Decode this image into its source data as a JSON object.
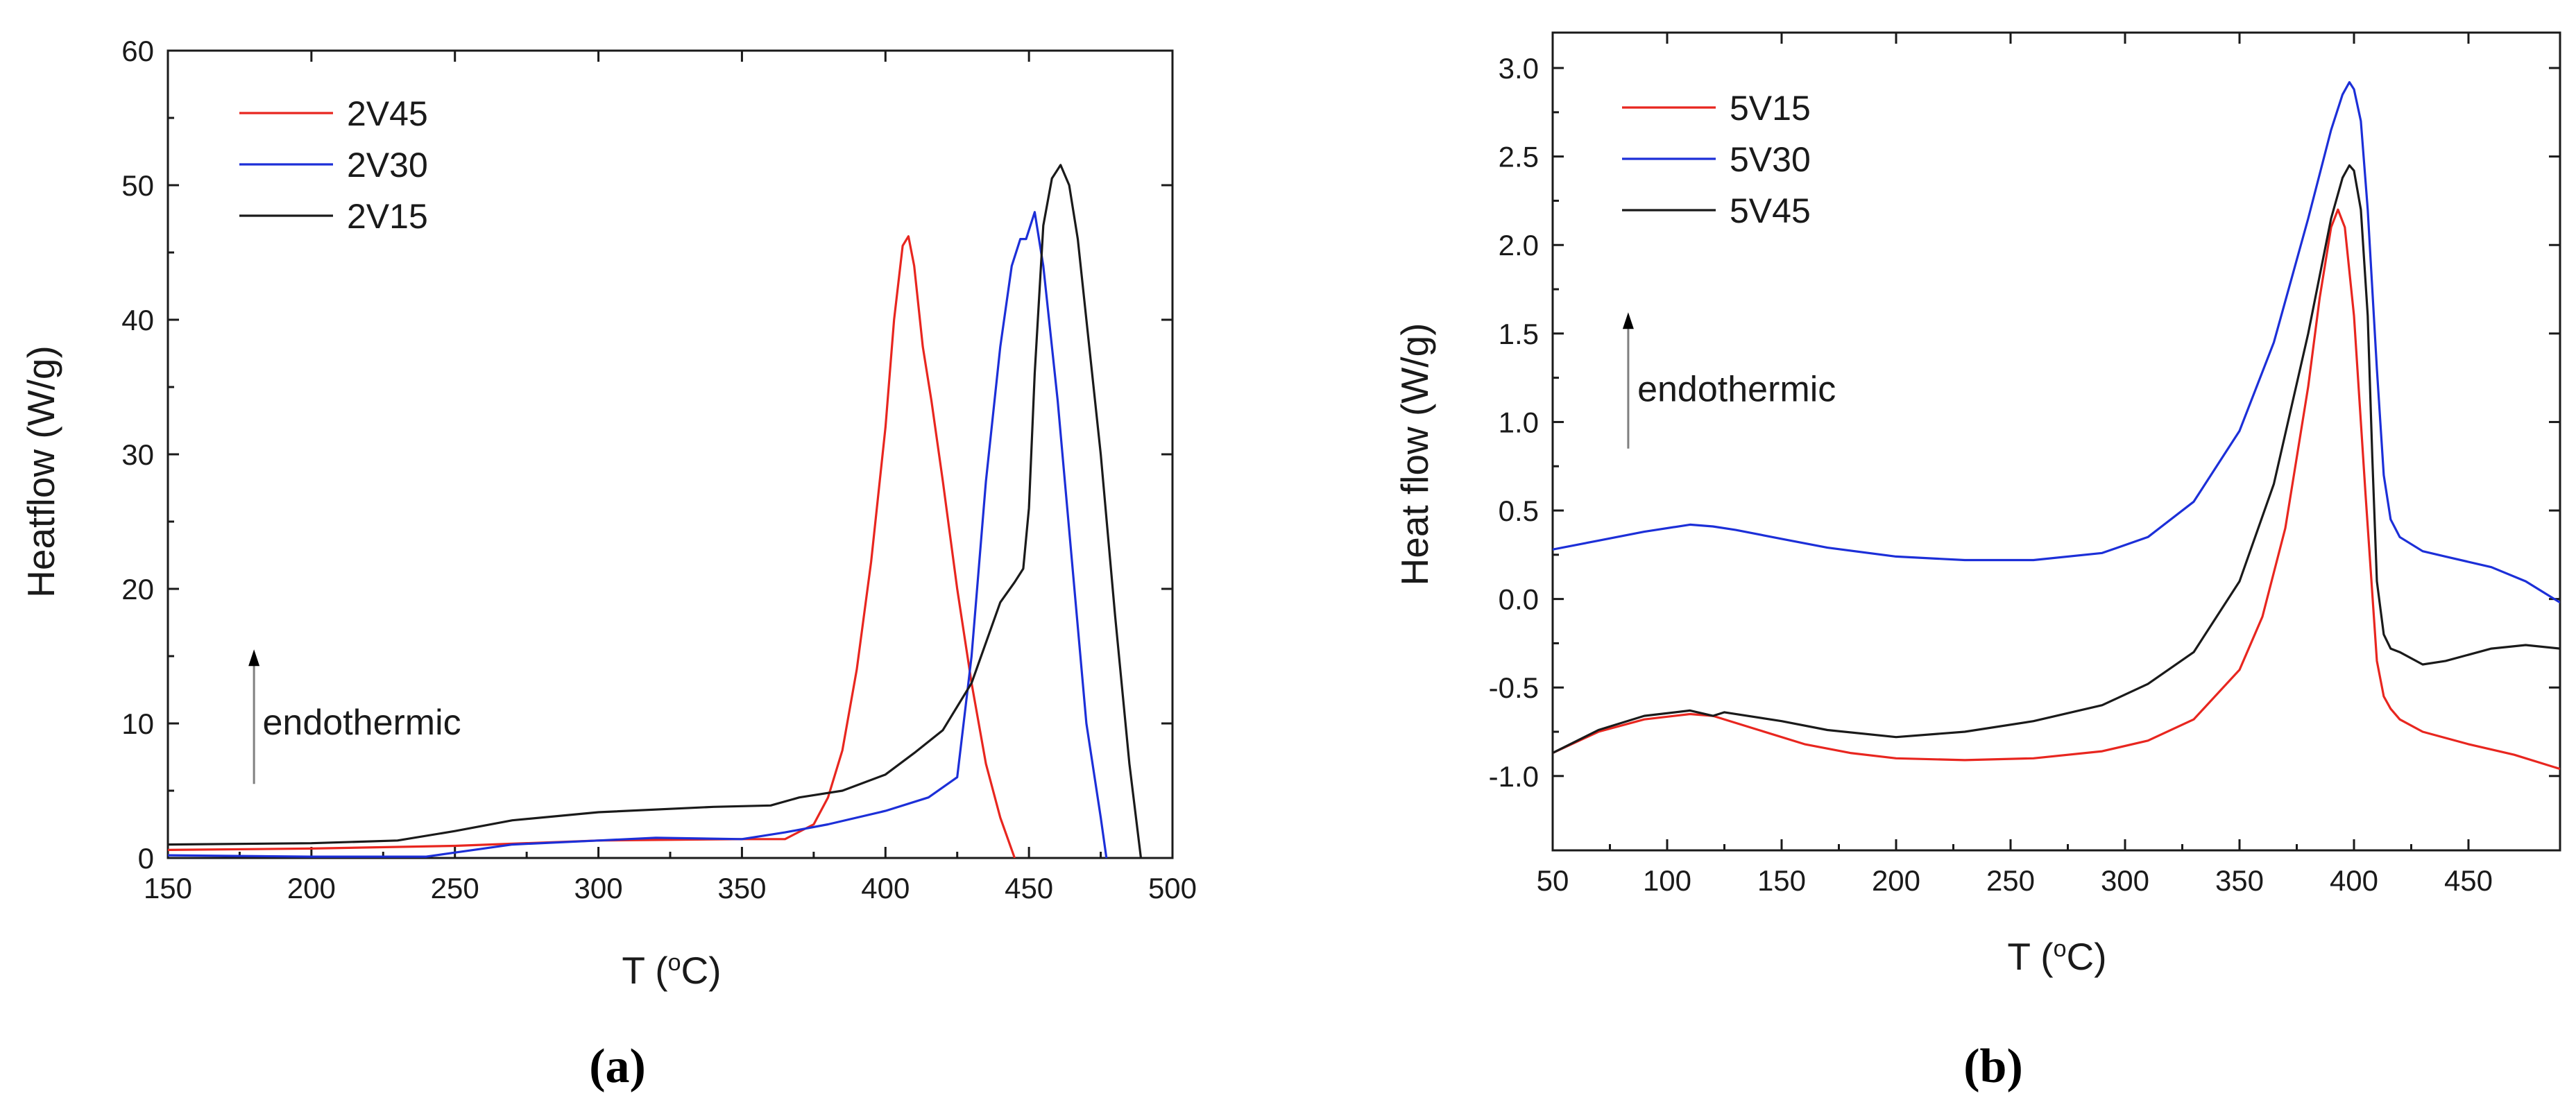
{
  "chart_data": [
    {
      "type": "line",
      "panel_label": "(a)",
      "xlabel": "T (°C)",
      "xlabel_parts": {
        "pre": "T (",
        "sup": "o",
        "post": "C)"
      },
      "ylabel": "Heatflow (W/g)",
      "xlim": [
        150,
        500
      ],
      "ylim": [
        0,
        60
      ],
      "xticks": [
        150,
        200,
        250,
        300,
        350,
        400,
        450,
        500
      ],
      "yticks": [
        0,
        10,
        20,
        30,
        40,
        50,
        60
      ],
      "annotation": {
        "text": "endothermic",
        "arrow_x": 180,
        "arrow_y_from": 5.5,
        "arrow_y_to": 15.5,
        "text_x": 183,
        "text_y": 10
      },
      "series": [
        {
          "name": "2V45",
          "color": "#e8261f",
          "x": [
            150,
            200,
            250,
            300,
            350,
            365,
            375,
            380,
            385,
            390,
            395,
            400,
            403,
            406,
            408,
            410,
            413,
            416,
            420,
            425,
            430,
            435,
            440,
            445
          ],
          "y": [
            0.6,
            0.7,
            0.9,
            1.3,
            1.4,
            1.4,
            2.5,
            4.5,
            8,
            14,
            22,
            32,
            40,
            45.5,
            46.2,
            44,
            38,
            34,
            28,
            20,
            13,
            7,
            3,
            0
          ]
        },
        {
          "name": "2V30",
          "color": "#1c2fd8",
          "x": [
            150,
            200,
            240,
            250,
            270,
            300,
            320,
            350,
            365,
            380,
            400,
            415,
            425,
            430,
            435,
            440,
            444,
            447,
            449,
            452,
            455,
            460,
            465,
            470,
            475,
            477
          ],
          "y": [
            0.2,
            0.1,
            0.1,
            0.4,
            1.0,
            1.3,
            1.5,
            1.4,
            1.9,
            2.5,
            3.5,
            4.5,
            6,
            15,
            28,
            38,
            44,
            46,
            46,
            48,
            44,
            34,
            22,
            10,
            3,
            0
          ]
        },
        {
          "name": "2V15",
          "color": "#1a1a1a",
          "x": [
            150,
            200,
            230,
            250,
            270,
            300,
            340,
            360,
            370,
            385,
            400,
            410,
            420,
            430,
            440,
            445,
            448,
            450,
            452,
            455,
            458,
            461,
            464,
            467,
            470,
            475,
            480,
            485,
            489
          ],
          "y": [
            1.0,
            1.1,
            1.3,
            2.0,
            2.8,
            3.4,
            3.8,
            3.9,
            4.5,
            5.0,
            6.2,
            7.8,
            9.5,
            13,
            19,
            20.5,
            21.5,
            26,
            36,
            47,
            50.5,
            51.5,
            50,
            46,
            40,
            30,
            18,
            7,
            0
          ]
        }
      ]
    },
    {
      "type": "line",
      "panel_label": "(b)",
      "xlabel": "T (°C)",
      "xlabel_parts": {
        "pre": "T (",
        "sup": "o",
        "post": "C)"
      },
      "ylabel": "Heat flow (W/g)",
      "xlim": [
        50,
        490
      ],
      "ylim": [
        -1.42,
        3.2
      ],
      "xticks": [
        50,
        100,
        150,
        200,
        250,
        300,
        350,
        400,
        450
      ],
      "yticks": [
        -1.0,
        -0.5,
        0.0,
        0.5,
        1.0,
        1.5,
        2.0,
        2.5,
        3.0
      ],
      "ytick_labels": [
        "-1.0",
        "-0.5",
        "0.0",
        "0.5",
        "1.0",
        "1.5",
        "2.0",
        "2.5",
        "3.0"
      ],
      "annotation": {
        "text": "endothermic",
        "arrow_x": 83,
        "arrow_y_from": 0.85,
        "arrow_y_to": 1.62,
        "text_x": 87,
        "text_y": 1.18
      },
      "series": [
        {
          "name": "5V15",
          "color": "#e8261f",
          "x": [
            50,
            70,
            90,
            110,
            120,
            140,
            160,
            180,
            200,
            230,
            260,
            290,
            310,
            330,
            350,
            360,
            370,
            380,
            385,
            390,
            393,
            396,
            400,
            405,
            410,
            413,
            416,
            420,
            430,
            450,
            470,
            490
          ],
          "y": [
            -0.87,
            -0.75,
            -0.68,
            -0.65,
            -0.66,
            -0.74,
            -0.82,
            -0.87,
            -0.9,
            -0.91,
            -0.9,
            -0.86,
            -0.8,
            -0.68,
            -0.4,
            -0.1,
            0.4,
            1.2,
            1.7,
            2.1,
            2.2,
            2.1,
            1.6,
            0.6,
            -0.35,
            -0.55,
            -0.62,
            -0.68,
            -0.75,
            -0.82,
            -0.88,
            -0.96
          ]
        },
        {
          "name": "5V30",
          "color": "#1c2fd8",
          "x": [
            50,
            70,
            90,
            110,
            120,
            130,
            150,
            170,
            200,
            230,
            260,
            290,
            310,
            330,
            350,
            365,
            380,
            390,
            395,
            398,
            400,
            403,
            406,
            410,
            413,
            416,
            420,
            430,
            440,
            460,
            475,
            490
          ],
          "y": [
            0.28,
            0.33,
            0.38,
            0.42,
            0.41,
            0.39,
            0.34,
            0.29,
            0.24,
            0.22,
            0.22,
            0.26,
            0.35,
            0.55,
            0.95,
            1.45,
            2.15,
            2.65,
            2.85,
            2.92,
            2.88,
            2.7,
            2.2,
            1.3,
            0.7,
            0.45,
            0.35,
            0.27,
            0.24,
            0.18,
            0.1,
            -0.02
          ]
        },
        {
          "name": "5V45",
          "color": "#1a1a1a",
          "x": [
            50,
            70,
            90,
            110,
            120,
            125,
            150,
            170,
            200,
            230,
            260,
            290,
            310,
            330,
            350,
            365,
            380,
            390,
            395,
            398,
            400,
            403,
            406,
            408,
            410,
            413,
            416,
            420,
            430,
            440,
            460,
            475,
            490
          ],
          "y": [
            -0.87,
            -0.74,
            -0.66,
            -0.63,
            -0.66,
            -0.64,
            -0.69,
            -0.74,
            -0.78,
            -0.75,
            -0.69,
            -0.6,
            -0.48,
            -0.3,
            0.1,
            0.65,
            1.5,
            2.15,
            2.38,
            2.45,
            2.42,
            2.2,
            1.6,
            0.8,
            0.1,
            -0.2,
            -0.28,
            -0.3,
            -0.37,
            -0.35,
            -0.28,
            -0.26,
            -0.28
          ]
        }
      ]
    }
  ]
}
